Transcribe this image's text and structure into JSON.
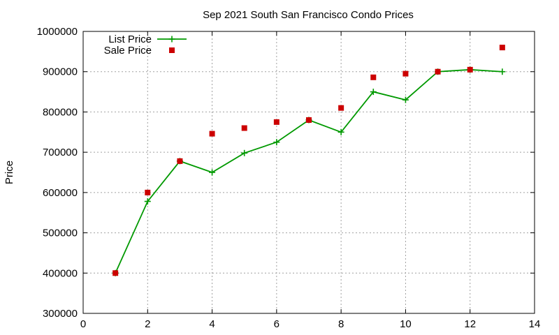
{
  "chart_data": {
    "type": "line",
    "title": "Sep 2021 South San Francisco Condo Prices",
    "xlabel": "",
    "ylabel": "Price",
    "xlim": [
      0,
      14
    ],
    "ylim": [
      300000,
      1000000
    ],
    "xticks": [
      0,
      2,
      4,
      6,
      8,
      10,
      12,
      14
    ],
    "yticks": [
      300000,
      400000,
      500000,
      600000,
      700000,
      800000,
      900000,
      1000000
    ],
    "grid": true,
    "legend_position": "top-left",
    "series": [
      {
        "name": "List Price",
        "style": "line-with-plus-markers",
        "color": "#009900",
        "x": [
          1,
          2,
          3,
          4,
          5,
          6,
          7,
          8,
          9,
          10,
          11,
          12,
          13
        ],
        "y": [
          400000,
          578000,
          678000,
          650000,
          698000,
          725000,
          780000,
          750000,
          850000,
          830000,
          900000,
          905000,
          900000
        ]
      },
      {
        "name": "Sale Price",
        "style": "square-markers",
        "color": "#cc0000",
        "x": [
          1,
          2,
          3,
          4,
          5,
          6,
          7,
          8,
          9,
          10,
          11,
          12,
          13
        ],
        "y": [
          400000,
          600000,
          678000,
          746000,
          760000,
          775000,
          780000,
          810000,
          886000,
          895000,
          900000,
          905000,
          960000
        ]
      }
    ]
  }
}
